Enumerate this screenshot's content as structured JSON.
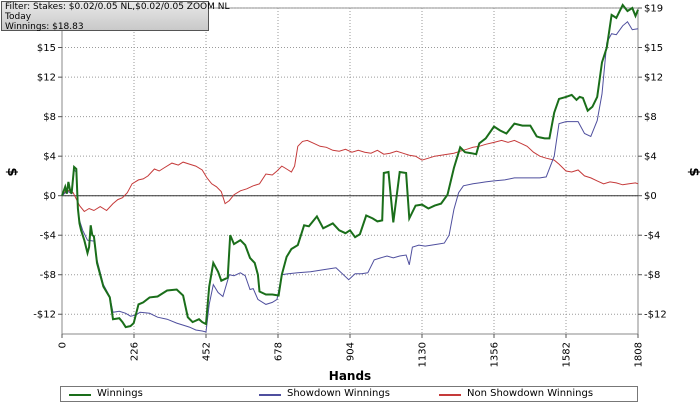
{
  "filter_box": {
    "line1": "Filter: Stakes: $0.02/0.05 NL,$0.02/0.05 ZOOM NL",
    "line2": "Today",
    "line3": "Winnings: $18.83"
  },
  "chart_data": {
    "type": "line",
    "xlabel": "Hands",
    "ylabel_left": "$",
    "ylabel_right": "$",
    "xlim": [
      0,
      1808
    ],
    "ylim": [
      -14,
      19
    ],
    "x_ticks": [
      0,
      226,
      452,
      678,
      904,
      1130,
      1356,
      1582,
      1808
    ],
    "y_ticks": [
      -12,
      -8,
      -4,
      0,
      4,
      8,
      12,
      15,
      19
    ],
    "y_tick_labels": [
      "-$12",
      "-$8",
      "-$4",
      "$0",
      "$4",
      "$8",
      "$12",
      "$15",
      "$19"
    ],
    "grid": true,
    "legend_position": "bottom",
    "series": [
      {
        "name": "Winnings",
        "color": "#1a6e1a",
        "points": [
          [
            0,
            0
          ],
          [
            10,
            0.9
          ],
          [
            15,
            0.2
          ],
          [
            20,
            1.4
          ],
          [
            25,
            0.6
          ],
          [
            30,
            0.2
          ],
          [
            38,
            2.9
          ],
          [
            45,
            2.7
          ],
          [
            50,
            -1.3
          ],
          [
            55,
            -2.8
          ],
          [
            60,
            -3.5
          ],
          [
            70,
            -4.5
          ],
          [
            80,
            -5.8
          ],
          [
            85,
            -5.2
          ],
          [
            90,
            -3.0
          ],
          [
            95,
            -4.0
          ],
          [
            100,
            -4.1
          ],
          [
            110,
            -6.8
          ],
          [
            130,
            -9.2
          ],
          [
            150,
            -10.3
          ],
          [
            160,
            -12.5
          ],
          [
            180,
            -12.4
          ],
          [
            190,
            -12.8
          ],
          [
            200,
            -13.3
          ],
          [
            215,
            -13.2
          ],
          [
            225,
            -12.9
          ],
          [
            240,
            -11.0
          ],
          [
            255,
            -10.8
          ],
          [
            275,
            -10.3
          ],
          [
            300,
            -10.2
          ],
          [
            330,
            -9.6
          ],
          [
            360,
            -9.5
          ],
          [
            380,
            -10.1
          ],
          [
            395,
            -12.3
          ],
          [
            410,
            -12.8
          ],
          [
            430,
            -12.5
          ],
          [
            440,
            -12.8
          ],
          [
            452,
            -13.0
          ],
          [
            462,
            -9.2
          ],
          [
            475,
            -6.8
          ],
          [
            490,
            -7.7
          ],
          [
            500,
            -8.6
          ],
          [
            520,
            -8.3
          ],
          [
            528,
            -4.0
          ],
          [
            540,
            -4.9
          ],
          [
            560,
            -4.5
          ],
          [
            575,
            -5.0
          ],
          [
            590,
            -6.3
          ],
          [
            605,
            -6.8
          ],
          [
            615,
            -8.0
          ],
          [
            620,
            -9.7
          ],
          [
            640,
            -10.0
          ],
          [
            660,
            -10.0
          ],
          [
            680,
            -10.1
          ],
          [
            690,
            -8.0
          ],
          [
            705,
            -6.2
          ],
          [
            720,
            -5.4
          ],
          [
            740,
            -5.0
          ],
          [
            760,
            -3.0
          ],
          [
            775,
            -3.1
          ],
          [
            800,
            -2.1
          ],
          [
            820,
            -3.3
          ],
          [
            850,
            -2.8
          ],
          [
            870,
            -3.5
          ],
          [
            890,
            -3.8
          ],
          [
            904,
            -3.5
          ],
          [
            920,
            -4.2
          ],
          [
            935,
            -3.9
          ],
          [
            955,
            -2.0
          ],
          [
            975,
            -2.3
          ],
          [
            990,
            -2.6
          ],
          [
            1005,
            -2.5
          ],
          [
            1010,
            2.3
          ],
          [
            1025,
            2.4
          ],
          [
            1040,
            -2.7
          ],
          [
            1060,
            2.4
          ],
          [
            1080,
            2.3
          ],
          [
            1090,
            -2.3
          ],
          [
            1110,
            -1.0
          ],
          [
            1130,
            -0.9
          ],
          [
            1150,
            -1.3
          ],
          [
            1170,
            -1.0
          ],
          [
            1190,
            -0.8
          ],
          [
            1210,
            0.1
          ],
          [
            1230,
            2.8
          ],
          [
            1250,
            4.9
          ],
          [
            1265,
            4.4
          ],
          [
            1285,
            4.3
          ],
          [
            1300,
            4.2
          ],
          [
            1310,
            5.3
          ],
          [
            1330,
            5.8
          ],
          [
            1356,
            7.0
          ],
          [
            1375,
            6.6
          ],
          [
            1395,
            6.3
          ],
          [
            1420,
            7.3
          ],
          [
            1445,
            7.1
          ],
          [
            1470,
            7.1
          ],
          [
            1490,
            6.0
          ],
          [
            1500,
            5.9
          ],
          [
            1515,
            5.8
          ],
          [
            1530,
            5.8
          ],
          [
            1545,
            8.4
          ],
          [
            1560,
            9.8
          ],
          [
            1582,
            10.0
          ],
          [
            1600,
            10.2
          ],
          [
            1615,
            9.7
          ],
          [
            1625,
            10.0
          ],
          [
            1635,
            9.9
          ],
          [
            1650,
            8.6
          ],
          [
            1665,
            9.0
          ],
          [
            1680,
            10.0
          ],
          [
            1695,
            13.5
          ],
          [
            1710,
            15.0
          ],
          [
            1725,
            18.3
          ],
          [
            1740,
            18.0
          ],
          [
            1760,
            19.3
          ],
          [
            1775,
            18.7
          ],
          [
            1790,
            19.0
          ],
          [
            1800,
            18.2
          ],
          [
            1808,
            18.83
          ]
        ]
      },
      {
        "name": "Showdown Winnings",
        "color": "#4f4f9e",
        "points": [
          [
            0,
            0
          ],
          [
            10,
            0.3
          ],
          [
            20,
            0.4
          ],
          [
            30,
            0.2
          ],
          [
            38,
            2.6
          ],
          [
            45,
            2.4
          ],
          [
            50,
            -1.4
          ],
          [
            55,
            -2.5
          ],
          [
            65,
            -3.5
          ],
          [
            80,
            -4.5
          ],
          [
            100,
            -4.6
          ],
          [
            110,
            -6.5
          ],
          [
            130,
            -9.0
          ],
          [
            150,
            -10.2
          ],
          [
            160,
            -11.8
          ],
          [
            180,
            -11.7
          ],
          [
            200,
            -11.9
          ],
          [
            215,
            -12.2
          ],
          [
            230,
            -12.1
          ],
          [
            245,
            -11.8
          ],
          [
            275,
            -11.9
          ],
          [
            300,
            -12.3
          ],
          [
            330,
            -12.5
          ],
          [
            360,
            -12.9
          ],
          [
            380,
            -13.1
          ],
          [
            400,
            -13.3
          ],
          [
            420,
            -13.6
          ],
          [
            440,
            -13.7
          ],
          [
            452,
            -13.8
          ],
          [
            462,
            -11.0
          ],
          [
            475,
            -9.0
          ],
          [
            490,
            -9.8
          ],
          [
            505,
            -10.2
          ],
          [
            525,
            -8.0
          ],
          [
            540,
            -8.1
          ],
          [
            560,
            -7.8
          ],
          [
            575,
            -8.1
          ],
          [
            590,
            -9.5
          ],
          [
            600,
            -9.4
          ],
          [
            615,
            -10.5
          ],
          [
            640,
            -11.0
          ],
          [
            660,
            -10.8
          ],
          [
            675,
            -10.5
          ],
          [
            690,
            -8.0
          ],
          [
            710,
            -7.9
          ],
          [
            740,
            -7.8
          ],
          [
            780,
            -7.7
          ],
          [
            820,
            -7.5
          ],
          [
            860,
            -7.3
          ],
          [
            900,
            -8.5
          ],
          [
            920,
            -7.9
          ],
          [
            940,
            -7.9
          ],
          [
            960,
            -7.8
          ],
          [
            980,
            -6.5
          ],
          [
            1000,
            -6.3
          ],
          [
            1020,
            -6.1
          ],
          [
            1040,
            -6.3
          ],
          [
            1060,
            -6.1
          ],
          [
            1080,
            -6.0
          ],
          [
            1090,
            -7.0
          ],
          [
            1100,
            -5.2
          ],
          [
            1120,
            -5.0
          ],
          [
            1140,
            -5.1
          ],
          [
            1160,
            -5.0
          ],
          [
            1180,
            -4.9
          ],
          [
            1200,
            -4.8
          ],
          [
            1215,
            -4.0
          ],
          [
            1230,
            -1.4
          ],
          [
            1245,
            0.3
          ],
          [
            1260,
            1.0
          ],
          [
            1290,
            1.2
          ],
          [
            1310,
            1.3
          ],
          [
            1330,
            1.4
          ],
          [
            1356,
            1.5
          ],
          [
            1390,
            1.6
          ],
          [
            1420,
            1.8
          ],
          [
            1450,
            1.8
          ],
          [
            1480,
            1.8
          ],
          [
            1500,
            1.8
          ],
          [
            1520,
            1.9
          ],
          [
            1545,
            4.0
          ],
          [
            1560,
            7.3
          ],
          [
            1582,
            7.5
          ],
          [
            1600,
            7.5
          ],
          [
            1620,
            7.5
          ],
          [
            1640,
            6.3
          ],
          [
            1660,
            6.0
          ],
          [
            1680,
            7.6
          ],
          [
            1695,
            10.3
          ],
          [
            1710,
            15.5
          ],
          [
            1725,
            16.4
          ],
          [
            1740,
            16.3
          ],
          [
            1760,
            17.2
          ],
          [
            1775,
            17.6
          ],
          [
            1790,
            16.8
          ],
          [
            1808,
            16.9
          ]
        ]
      },
      {
        "name": "Non Showdown Winnings",
        "color": "#c53a3a",
        "points": [
          [
            0,
            0
          ],
          [
            15,
            0.6
          ],
          [
            35,
            0.3
          ],
          [
            55,
            -1.0
          ],
          [
            70,
            -1.6
          ],
          [
            85,
            -1.3
          ],
          [
            100,
            -1.5
          ],
          [
            120,
            -1.1
          ],
          [
            140,
            -1.5
          ],
          [
            160,
            -0.8
          ],
          [
            175,
            -0.4
          ],
          [
            190,
            -0.2
          ],
          [
            205,
            0.3
          ],
          [
            220,
            1.2
          ],
          [
            240,
            1.6
          ],
          [
            255,
            1.7
          ],
          [
            270,
            2.0
          ],
          [
            290,
            2.7
          ],
          [
            305,
            2.5
          ],
          [
            320,
            2.8
          ],
          [
            345,
            3.3
          ],
          [
            365,
            3.1
          ],
          [
            380,
            3.4
          ],
          [
            400,
            3.2
          ],
          [
            420,
            3.0
          ],
          [
            440,
            2.6
          ],
          [
            455,
            1.8
          ],
          [
            470,
            1.2
          ],
          [
            485,
            0.9
          ],
          [
            500,
            0.4
          ],
          [
            512,
            -0.8
          ],
          [
            525,
            -0.5
          ],
          [
            540,
            0.1
          ],
          [
            560,
            0.5
          ],
          [
            580,
            0.7
          ],
          [
            600,
            1.0
          ],
          [
            620,
            1.2
          ],
          [
            640,
            2.2
          ],
          [
            660,
            2.1
          ],
          [
            675,
            2.5
          ],
          [
            690,
            3.0
          ],
          [
            700,
            2.8
          ],
          [
            710,
            2.6
          ],
          [
            720,
            2.4
          ],
          [
            730,
            3.0
          ],
          [
            740,
            5.0
          ],
          [
            755,
            5.5
          ],
          [
            770,
            5.6
          ],
          [
            790,
            5.3
          ],
          [
            810,
            5.0
          ],
          [
            830,
            4.9
          ],
          [
            850,
            4.6
          ],
          [
            870,
            4.5
          ],
          [
            890,
            4.7
          ],
          [
            910,
            4.4
          ],
          [
            930,
            4.6
          ],
          [
            950,
            4.4
          ],
          [
            970,
            4.3
          ],
          [
            990,
            4.6
          ],
          [
            1010,
            4.2
          ],
          [
            1030,
            4.3
          ],
          [
            1050,
            4.5
          ],
          [
            1070,
            4.3
          ],
          [
            1090,
            4.1
          ],
          [
            1110,
            4.0
          ],
          [
            1130,
            3.6
          ],
          [
            1150,
            3.8
          ],
          [
            1170,
            4.0
          ],
          [
            1190,
            4.1
          ],
          [
            1210,
            4.2
          ],
          [
            1230,
            4.3
          ],
          [
            1250,
            4.5
          ],
          [
            1270,
            4.7
          ],
          [
            1290,
            4.9
          ],
          [
            1310,
            5.0
          ],
          [
            1330,
            5.2
          ],
          [
            1356,
            5.4
          ],
          [
            1380,
            5.6
          ],
          [
            1400,
            5.4
          ],
          [
            1420,
            5.6
          ],
          [
            1440,
            5.3
          ],
          [
            1460,
            5.0
          ],
          [
            1480,
            4.4
          ],
          [
            1500,
            4.0
          ],
          [
            1520,
            3.8
          ],
          [
            1545,
            3.6
          ],
          [
            1560,
            3.2
          ],
          [
            1582,
            2.5
          ],
          [
            1600,
            2.4
          ],
          [
            1620,
            2.6
          ],
          [
            1640,
            2.0
          ],
          [
            1660,
            1.8
          ],
          [
            1680,
            1.5
          ],
          [
            1700,
            1.2
          ],
          [
            1720,
            1.4
          ],
          [
            1740,
            1.3
          ],
          [
            1760,
            1.1
          ],
          [
            1780,
            1.2
          ],
          [
            1800,
            1.3
          ],
          [
            1808,
            1.2
          ]
        ]
      }
    ]
  }
}
